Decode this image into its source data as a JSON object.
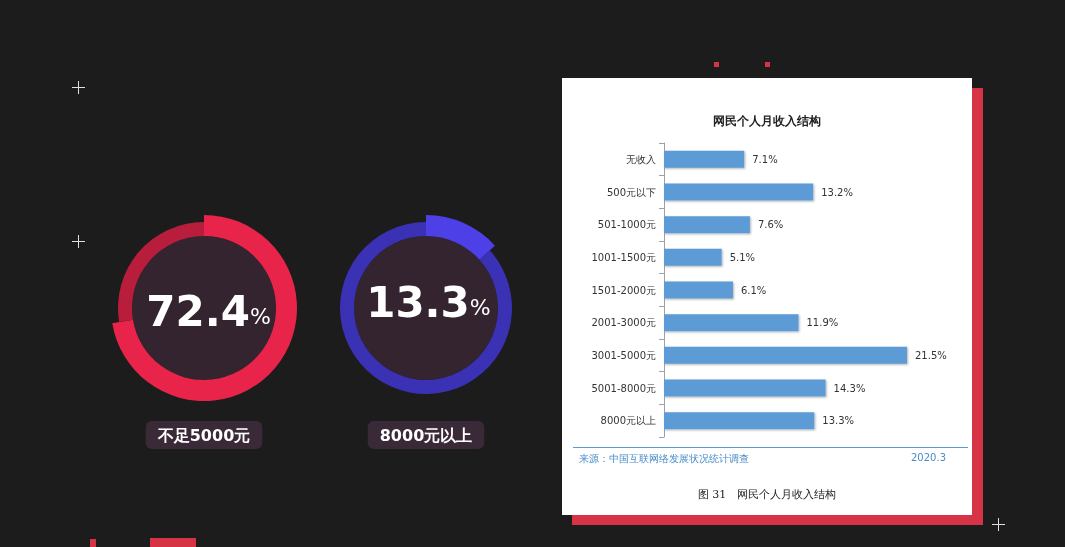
{
  "chart_data": [
    {
      "type": "donut",
      "title": "不足5000元",
      "values": [
        72.4,
        27.6
      ],
      "colors": [
        "#e8244a",
        "#b81e3c"
      ],
      "value_labels": [
        "72.4%",
        null
      ]
    },
    {
      "type": "donut",
      "title": "8000元以上",
      "values": [
        13.3,
        86.7
      ],
      "colors": [
        "#4c40e6",
        "#3a31b4"
      ],
      "value_labels": [
        "13.3%",
        null
      ]
    },
    {
      "type": "bar",
      "orientation": "horizontal",
      "title": "网民个人月收入结构",
      "categories": [
        "无收入",
        "500元以下",
        "501-1000元",
        "1001-1500元",
        "1501-2000元",
        "2001-3000元",
        "3001-5000元",
        "5001-8000元",
        "8000元以上"
      ],
      "values": [
        7.1,
        13.2,
        7.6,
        5.1,
        6.1,
        11.9,
        21.5,
        14.3,
        13.3
      ],
      "color": "#5b9bd5",
      "value_labels": [
        "7.1%",
        "13.2%",
        "7.6%",
        "5.1%",
        "6.1%",
        "11.9%",
        "21.5%",
        "14.3%",
        "13.3%"
      ],
      "annotations": [
        "来源：中国互联网络发展状况统计调查",
        "2020.3",
        "图 31　网民个人月收入结构"
      ]
    }
  ]
}
